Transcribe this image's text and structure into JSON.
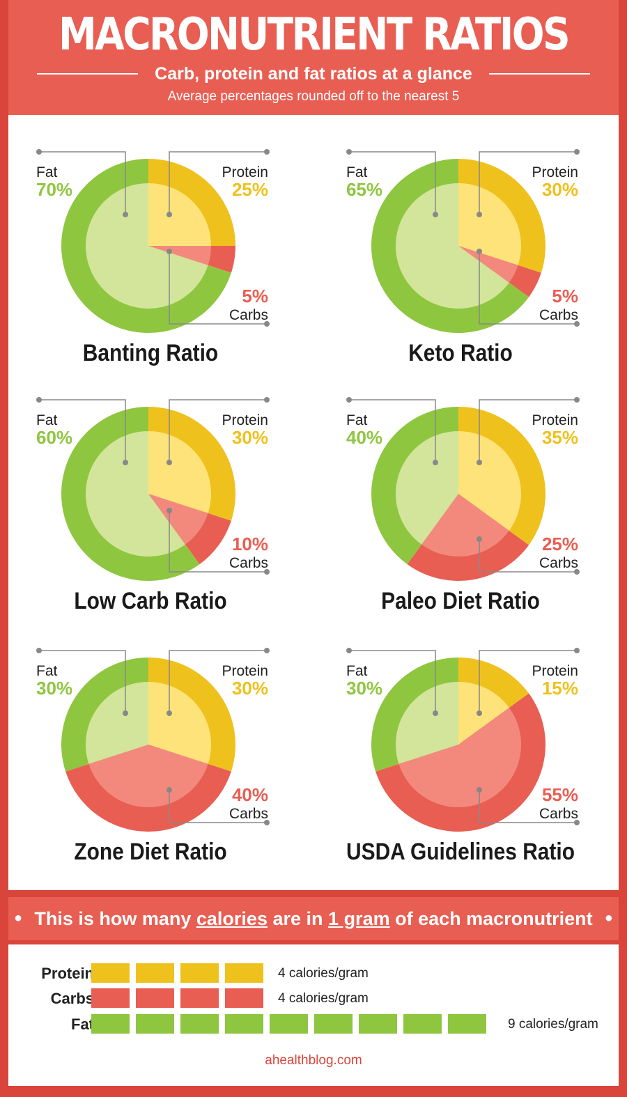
{
  "header": {
    "title": "MACRONUTRIENT RATIOS",
    "subtitle": "Carb, protein and fat ratios at a glance",
    "note": "Average percentages rounded off to the nearest 5"
  },
  "colors": {
    "fat": "#8fc640",
    "fat_light": "#d2e59a",
    "protein": "#efc11d",
    "protein_light": "#fde37a",
    "carbs": "#e95e52",
    "carbs_light": "#f3897d",
    "leader": "#888888"
  },
  "labels": {
    "fat": "Fat",
    "protein": "Protein",
    "carbs": "Carbs"
  },
  "chart_data": [
    {
      "type": "pie",
      "title": "Banting Ratio",
      "categories": [
        "Fat",
        "Protein",
        "Carbs"
      ],
      "values": [
        70,
        25,
        5
      ],
      "value_labels": [
        "70%",
        "25%",
        "5%"
      ]
    },
    {
      "type": "pie",
      "title": "Keto Ratio",
      "categories": [
        "Fat",
        "Protein",
        "Carbs"
      ],
      "values": [
        65,
        30,
        5
      ],
      "value_labels": [
        "65%",
        "30%",
        "5%"
      ]
    },
    {
      "type": "pie",
      "title": "Low Carb Ratio",
      "categories": [
        "Fat",
        "Protein",
        "Carbs"
      ],
      "values": [
        60,
        30,
        10
      ],
      "value_labels": [
        "60%",
        "30%",
        "10%"
      ]
    },
    {
      "type": "pie",
      "title": "Paleo Diet Ratio",
      "categories": [
        "Fat",
        "Protein",
        "Carbs"
      ],
      "values": [
        40,
        35,
        25
      ],
      "value_labels": [
        "40%",
        "35%",
        "25%"
      ]
    },
    {
      "type": "pie",
      "title": "Zone Diet Ratio",
      "categories": [
        "Fat",
        "Protein",
        "Carbs"
      ],
      "values": [
        30,
        30,
        40
      ],
      "value_labels": [
        "30%",
        "30%",
        "40%"
      ]
    },
    {
      "type": "pie",
      "title": "USDA Guidelines Ratio",
      "categories": [
        "Fat",
        "Protein",
        "Carbs"
      ],
      "values": [
        30,
        15,
        55
      ],
      "value_labels": [
        "30%",
        "15%",
        "55%"
      ]
    }
  ],
  "calories": {
    "pre": "This is how many",
    "calories_word": "calories",
    "mid": "are in",
    "gram_word": "1 gram",
    "post": "of each macronutrient",
    "bullet": "•",
    "rows": [
      {
        "label": "Protein",
        "value": 4,
        "text": "4 calories/gram",
        "color": "#efc11d"
      },
      {
        "label": "Carbs",
        "value": 4,
        "text": "4 calories/gram",
        "color": "#e95e52"
      },
      {
        "label": "Fat",
        "value": 9,
        "text": "9 calories/gram",
        "color": "#8fc640"
      }
    ]
  },
  "footer": {
    "site": "ahealthblog.com"
  }
}
